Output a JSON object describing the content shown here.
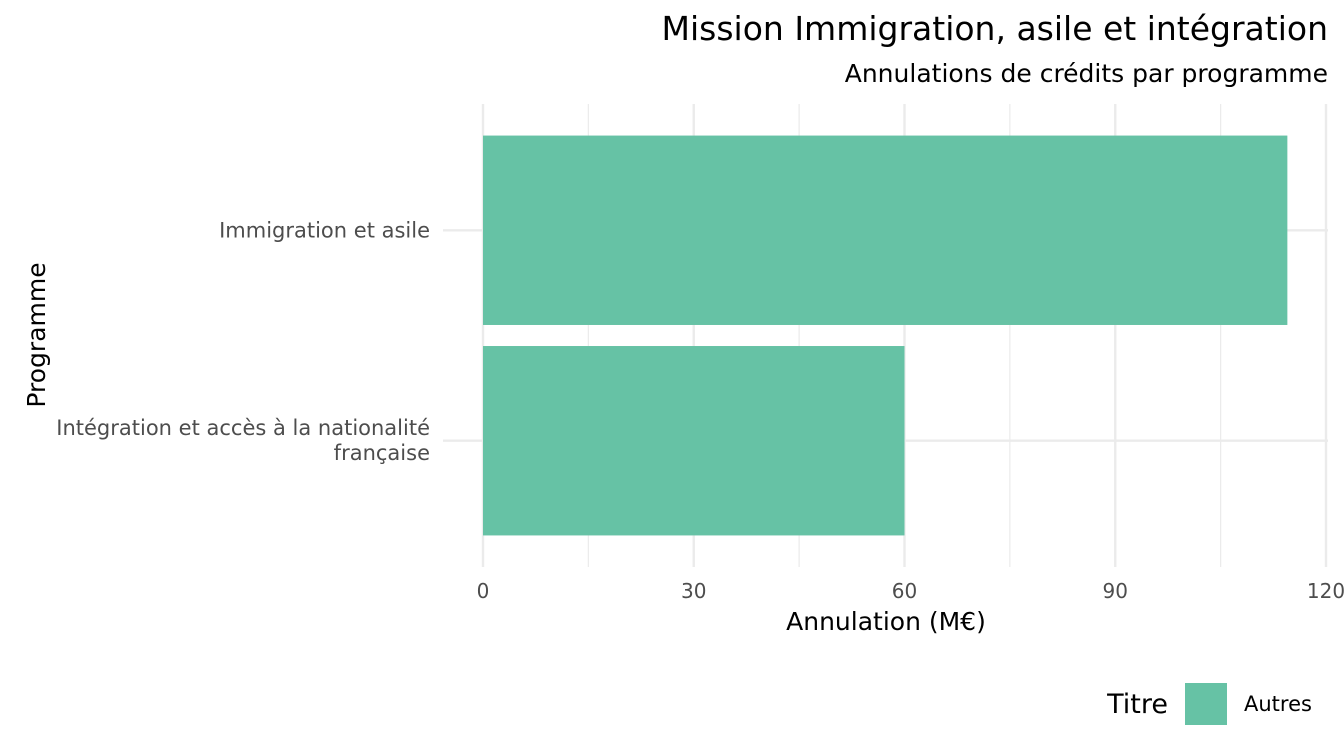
{
  "chart_data": {
    "type": "bar",
    "orientation": "horizontal",
    "title": "Mission Immigration, asile et intégration",
    "subtitle": "Annulations de crédits par programme",
    "xlabel": "Annulation (M€)",
    "ylabel": "Programme",
    "xlim": [
      0,
      120
    ],
    "xticks": [
      0,
      30,
      60,
      90,
      120
    ],
    "grid": true,
    "categories": [
      [
        "Immigration et asile"
      ],
      [
        "Intégration et accès à la nationalité",
        "française"
      ]
    ],
    "series": [
      {
        "name": "Autres",
        "values": [
          114.5,
          60
        ],
        "color": "#66c2a5"
      }
    ],
    "legend": {
      "title": "Titre",
      "position": "bottom-right"
    }
  }
}
